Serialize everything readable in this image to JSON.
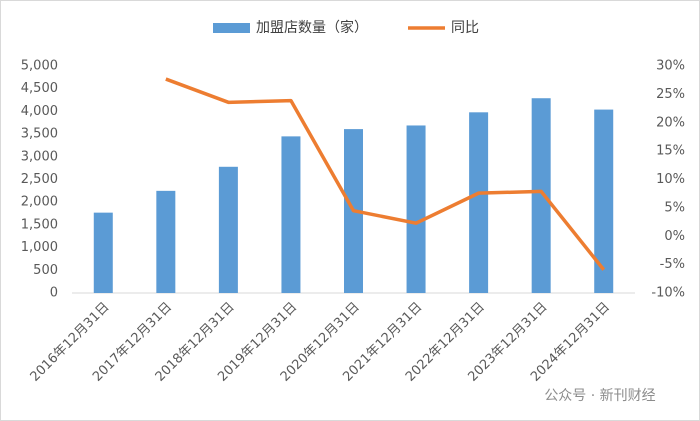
{
  "chart_data": {
    "type": "bar_line",
    "categories": [
      "2016年12月31日",
      "2017年12月31日",
      "2018年12月31日",
      "2019年12月31日",
      "2020年12月31日",
      "2021年12月31日",
      "2022年12月31日",
      "2023年12月31日",
      "2024年12月31日"
    ],
    "series": [
      {
        "name": "加盟店数量（家）",
        "type": "bar",
        "color": "#5b9bd5",
        "values": [
          1770,
          2250,
          2780,
          3450,
          3610,
          3690,
          3980,
          4290,
          4040
        ]
      },
      {
        "name": "同比",
        "type": "line",
        "axis": "y2",
        "color": "#ed7d31",
        "values": [
          null,
          27.7,
          23.6,
          23.9,
          4.5,
          2.3,
          7.6,
          7.9,
          -5.9
        ]
      }
    ],
    "ylim": [
      0,
      5000
    ],
    "yticks": [
      0,
      500,
      {
        "value": 1000,
        "label": "1,000"
      },
      {
        "value": 1500,
        "label": "1,500"
      },
      {
        "value": 2000,
        "label": "2,000"
      },
      {
        "value": 2500,
        "label": "2,500"
      },
      {
        "value": 3000,
        "label": "3,000"
      },
      {
        "value": 3500,
        "label": "3,500"
      },
      {
        "value": 4000,
        "label": "4,000"
      },
      {
        "value": 4500,
        "label": "4,500"
      },
      {
        "value": 5000,
        "label": "5,000"
      }
    ],
    "y2lim": [
      -10,
      30
    ],
    "y2ticks": [
      {
        "value": -10,
        "label": "-10%"
      },
      {
        "value": -5,
        "label": "-5%"
      },
      {
        "value": 0,
        "label": "0%"
      },
      {
        "value": 5,
        "label": "5%"
      },
      {
        "value": 10,
        "label": "10%"
      },
      {
        "value": 15,
        "label": "15%"
      },
      {
        "value": 20,
        "label": "20%"
      },
      {
        "value": 25,
        "label": "25%"
      },
      {
        "value": 30,
        "label": "30%"
      }
    ],
    "legend": "top",
    "watermark": "公众号 · 新刊财经"
  }
}
